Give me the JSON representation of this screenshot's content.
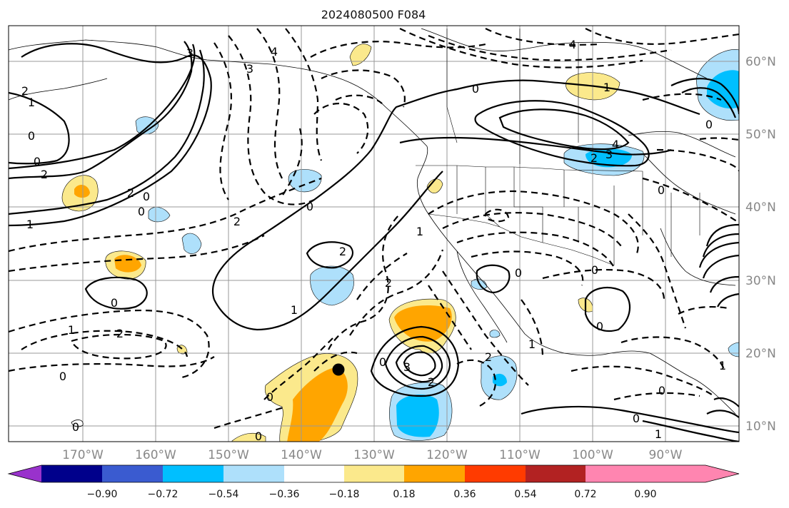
{
  "title": "2024080500 F084",
  "lon_labels": [
    "170°W",
    "160°W",
    "150°W",
    "140°W",
    "130°W",
    "120°W",
    "110°W",
    "100°W",
    "90°W"
  ],
  "lat_labels": [
    "60°N",
    "50°N",
    "40°N",
    "30°N",
    "20°N",
    "10°N"
  ],
  "colorbar": {
    "ticks": [
      "−0.90",
      "−0.72",
      "−0.54",
      "−0.36",
      "−0.18",
      "0.18",
      "0.36",
      "0.54",
      "0.72",
      "0.90"
    ],
    "colors": [
      "#9932cc",
      "#00008b",
      "#3a5bd0",
      "#00bfff",
      "#aee0fb",
      "#ffffff",
      "#fbe98c",
      "#ffa500",
      "#ff3b00",
      "#b22222",
      "#ff85b0"
    ]
  },
  "contour_labels": [
    {
      "text": "0",
      "role": "contour-label-0"
    },
    {
      "text": "1",
      "role": "contour-label-1"
    },
    {
      "text": "2",
      "role": "contour-label-2"
    },
    {
      "text": "3",
      "role": "contour-label-3"
    },
    {
      "text": "4",
      "role": "contour-label-4"
    }
  ],
  "marker": {
    "type": "black-dot",
    "color": "#000000"
  }
}
